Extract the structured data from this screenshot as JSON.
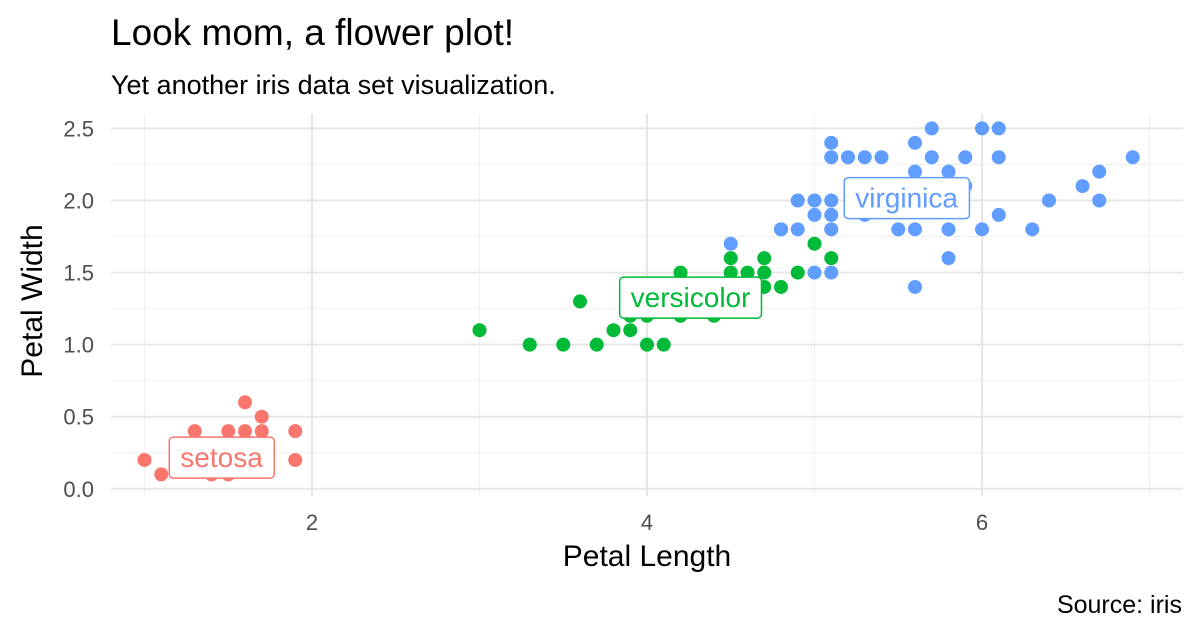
{
  "chart_data": {
    "type": "scatter",
    "title": "Look mom, a flower plot!",
    "subtitle": "Yet another iris data set visualization.",
    "caption": "Source: iris",
    "xlabel": "Petal Length",
    "ylabel": "Petal Width",
    "xlim": [
      0.8,
      7.2
    ],
    "ylim": [
      -0.05,
      2.6
    ],
    "x_ticks": [
      2,
      4,
      6
    ],
    "x_tick_labels": [
      "2",
      "4",
      "6"
    ],
    "y_ticks": [
      0,
      0.5,
      1,
      1.5,
      2,
      2.5
    ],
    "y_tick_labels": [
      "0.0",
      "0.5",
      "1.0",
      "1.5",
      "2.0",
      "2.5"
    ],
    "grid": true,
    "legend": "none",
    "series": [
      {
        "name": "setosa",
        "color": "#F8766D",
        "label_pos": {
          "x": 1.46,
          "y": 0.22
        },
        "points": [
          [
            1.0,
            0.2
          ],
          [
            1.1,
            0.1
          ],
          [
            1.2,
            0.2
          ],
          [
            1.3,
            0.2
          ],
          [
            1.3,
            0.3
          ],
          [
            1.3,
            0.4
          ],
          [
            1.4,
            0.1
          ],
          [
            1.4,
            0.2
          ],
          [
            1.4,
            0.3
          ],
          [
            1.5,
            0.1
          ],
          [
            1.5,
            0.2
          ],
          [
            1.5,
            0.3
          ],
          [
            1.5,
            0.4
          ],
          [
            1.6,
            0.2
          ],
          [
            1.6,
            0.4
          ],
          [
            1.6,
            0.6
          ],
          [
            1.7,
            0.2
          ],
          [
            1.7,
            0.3
          ],
          [
            1.7,
            0.4
          ],
          [
            1.7,
            0.5
          ],
          [
            1.9,
            0.2
          ],
          [
            1.9,
            0.4
          ]
        ]
      },
      {
        "name": "versicolor",
        "color": "#00BA38",
        "label_pos": {
          "x": 4.26,
          "y": 1.33
        },
        "points": [
          [
            3.0,
            1.1
          ],
          [
            3.3,
            1.0
          ],
          [
            3.5,
            1.0
          ],
          [
            3.6,
            1.3
          ],
          [
            3.7,
            1.0
          ],
          [
            3.8,
            1.1
          ],
          [
            3.9,
            1.1
          ],
          [
            3.9,
            1.2
          ],
          [
            3.9,
            1.4
          ],
          [
            4.0,
            1.0
          ],
          [
            4.0,
            1.2
          ],
          [
            4.0,
            1.3
          ],
          [
            4.1,
            1.0
          ],
          [
            4.1,
            1.3
          ],
          [
            4.2,
            1.2
          ],
          [
            4.2,
            1.3
          ],
          [
            4.2,
            1.5
          ],
          [
            4.3,
            1.3
          ],
          [
            4.4,
            1.2
          ],
          [
            4.4,
            1.3
          ],
          [
            4.4,
            1.4
          ],
          [
            4.5,
            1.3
          ],
          [
            4.5,
            1.5
          ],
          [
            4.5,
            1.6
          ],
          [
            4.6,
            1.3
          ],
          [
            4.6,
            1.4
          ],
          [
            4.6,
            1.5
          ],
          [
            4.7,
            1.4
          ],
          [
            4.7,
            1.5
          ],
          [
            4.7,
            1.6
          ],
          [
            4.8,
            1.4
          ],
          [
            4.8,
            1.8
          ],
          [
            4.9,
            1.5
          ],
          [
            5.0,
            1.7
          ],
          [
            5.1,
            1.6
          ]
        ]
      },
      {
        "name": "virginica",
        "color": "#619CFF",
        "label_pos": {
          "x": 5.55,
          "y": 2.02
        },
        "points": [
          [
            4.5,
            1.7
          ],
          [
            4.8,
            1.8
          ],
          [
            4.9,
            1.8
          ],
          [
            4.9,
            2.0
          ],
          [
            5.0,
            1.5
          ],
          [
            5.0,
            1.9
          ],
          [
            5.0,
            2.0
          ],
          [
            5.1,
            1.5
          ],
          [
            5.1,
            1.8
          ],
          [
            5.1,
            1.9
          ],
          [
            5.1,
            2.0
          ],
          [
            5.1,
            2.3
          ],
          [
            5.1,
            2.4
          ],
          [
            5.2,
            2.3
          ],
          [
            5.3,
            1.9
          ],
          [
            5.3,
            2.3
          ],
          [
            5.4,
            2.1
          ],
          [
            5.4,
            2.3
          ],
          [
            5.5,
            1.8
          ],
          [
            5.5,
            2.1
          ],
          [
            5.6,
            1.4
          ],
          [
            5.6,
            1.8
          ],
          [
            5.6,
            2.1
          ],
          [
            5.6,
            2.2
          ],
          [
            5.6,
            2.4
          ],
          [
            5.7,
            2.1
          ],
          [
            5.7,
            2.3
          ],
          [
            5.7,
            2.5
          ],
          [
            5.8,
            1.6
          ],
          [
            5.8,
            1.8
          ],
          [
            5.8,
            2.2
          ],
          [
            5.9,
            2.1
          ],
          [
            5.9,
            2.3
          ],
          [
            6.0,
            1.8
          ],
          [
            6.0,
            2.5
          ],
          [
            6.1,
            1.9
          ],
          [
            6.1,
            2.3
          ],
          [
            6.1,
            2.5
          ],
          [
            6.3,
            1.8
          ],
          [
            6.4,
            2.0
          ],
          [
            6.6,
            2.1
          ],
          [
            6.7,
            2.0
          ],
          [
            6.7,
            2.2
          ],
          [
            6.9,
            2.3
          ]
        ]
      }
    ]
  }
}
